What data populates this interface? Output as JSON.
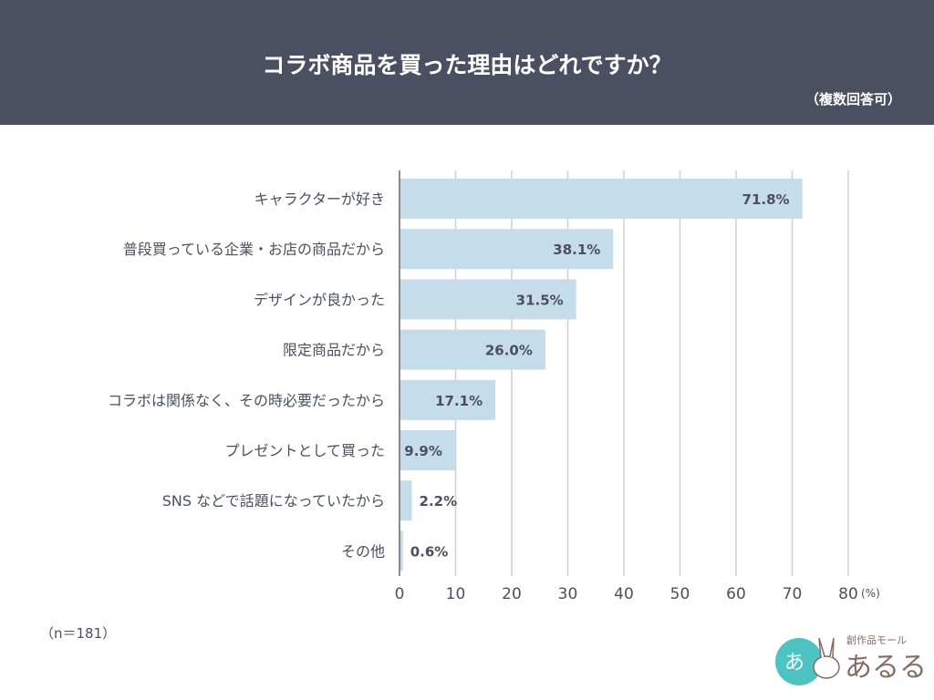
{
  "header": {
    "title": "コラボ商品を買った理由はどれですか？",
    "subtitle": "（複数回答可）"
  },
  "footer": {
    "n_label": "（n＝181）"
  },
  "logo": {
    "text": "創作品モール あるる"
  },
  "colors": {
    "header": "#4a5061",
    "bar": "#c5dcea",
    "grid": "#d0d0d0",
    "text": "#4a5061"
  },
  "chart_data": {
    "type": "bar",
    "orientation": "horizontal",
    "categories": [
      "キャラクターが好き",
      "普段買っている企業・お店の商品だから",
      "デザインが良かった",
      "限定商品だから",
      "コラボは関係なく、その時必要だったから",
      "プレゼントとして買った",
      "SNS などで話題になっていたから",
      "その他"
    ],
    "values": [
      71.8,
      38.1,
      31.5,
      26.0,
      17.1,
      9.9,
      2.2,
      0.6
    ],
    "data_labels": [
      "71.8%",
      "38.1%",
      "31.5%",
      "26.0%",
      "17.1%",
      "9.9%",
      "2.2%",
      "0.6%"
    ],
    "xlim": [
      0,
      80
    ],
    "xticks": [
      0,
      10,
      20,
      30,
      40,
      50,
      60,
      70,
      80
    ],
    "xunit": "(%)",
    "grid": true
  }
}
